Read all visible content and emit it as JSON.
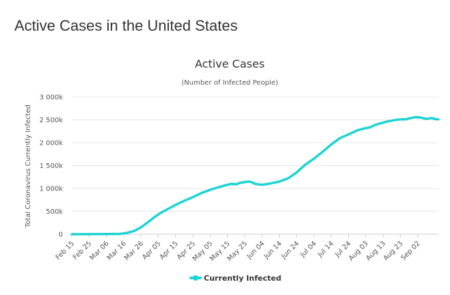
{
  "page": {
    "heading": "Active Cases in the United States"
  },
  "colors": {
    "series": "#1ed3d3",
    "grid": "#e6e6e6",
    "text": "#333333"
  },
  "chart_data": {
    "type": "line",
    "title": "Active Cases",
    "subtitle": "(Number of Infected People)",
    "xlabel": "",
    "ylabel": "Total Coronavirus Currently Infected",
    "ylim": [
      0,
      3000000
    ],
    "y_ticks": [
      {
        "value": 0,
        "label": "0"
      },
      {
        "value": 500000,
        "label": "500k"
      },
      {
        "value": 1000000,
        "label": "1 000k"
      },
      {
        "value": 1500000,
        "label": "1 500k"
      },
      {
        "value": 2000000,
        "label": "2 000k"
      },
      {
        "value": 2500000,
        "label": "2 500k"
      },
      {
        "value": 3000000,
        "label": "3 000k"
      }
    ],
    "x_range": [
      0,
      212
    ],
    "x_ticks": [
      {
        "day": 0,
        "label": "Feb 15"
      },
      {
        "day": 10,
        "label": "Feb 25"
      },
      {
        "day": 20,
        "label": "Mar 06"
      },
      {
        "day": 30,
        "label": "Mar 16"
      },
      {
        "day": 40,
        "label": "Mar 26"
      },
      {
        "day": 50,
        "label": "Apr 05"
      },
      {
        "day": 60,
        "label": "Apr 15"
      },
      {
        "day": 70,
        "label": "Apr 25"
      },
      {
        "day": 80,
        "label": "May 05"
      },
      {
        "day": 90,
        "label": "May 15"
      },
      {
        "day": 100,
        "label": "May 25"
      },
      {
        "day": 110,
        "label": "Jun 04"
      },
      {
        "day": 120,
        "label": "Jun 14"
      },
      {
        "day": 130,
        "label": "Jun 24"
      },
      {
        "day": 140,
        "label": "Jul 04"
      },
      {
        "day": 150,
        "label": "Jul 14"
      },
      {
        "day": 160,
        "label": "Jul 24"
      },
      {
        "day": 170,
        "label": "Aug 03"
      },
      {
        "day": 180,
        "label": "Aug 13"
      },
      {
        "day": 190,
        "label": "Aug 23"
      },
      {
        "day": 200,
        "label": "Sep 02"
      }
    ],
    "legend": "bottom-center",
    "series": [
      {
        "name": "Currently Infected",
        "x": [
          0,
          10,
          20,
          28,
          32,
          36,
          40,
          44,
          48,
          52,
          56,
          60,
          65,
          70,
          75,
          80,
          85,
          90,
          92,
          95,
          97,
          100,
          102,
          104,
          106,
          110,
          115,
          120,
          125,
          130,
          135,
          140,
          145,
          150,
          155,
          160,
          165,
          170,
          172,
          175,
          178,
          182,
          186,
          190,
          193,
          196,
          199,
          202,
          205,
          208,
          210,
          212
        ],
        "y": [
          0,
          1000,
          3000,
          8000,
          30000,
          70000,
          150000,
          260000,
          380000,
          480000,
          560000,
          640000,
          730000,
          810000,
          900000,
          970000,
          1030000,
          1080000,
          1100000,
          1090000,
          1120000,
          1140000,
          1150000,
          1140000,
          1100000,
          1080000,
          1110000,
          1150000,
          1220000,
          1350000,
          1520000,
          1650000,
          1800000,
          1960000,
          2100000,
          2180000,
          2270000,
          2320000,
          2330000,
          2380000,
          2420000,
          2460000,
          2490000,
          2510000,
          2510000,
          2540000,
          2560000,
          2550000,
          2520000,
          2540000,
          2520000,
          2510000
        ]
      }
    ]
  }
}
